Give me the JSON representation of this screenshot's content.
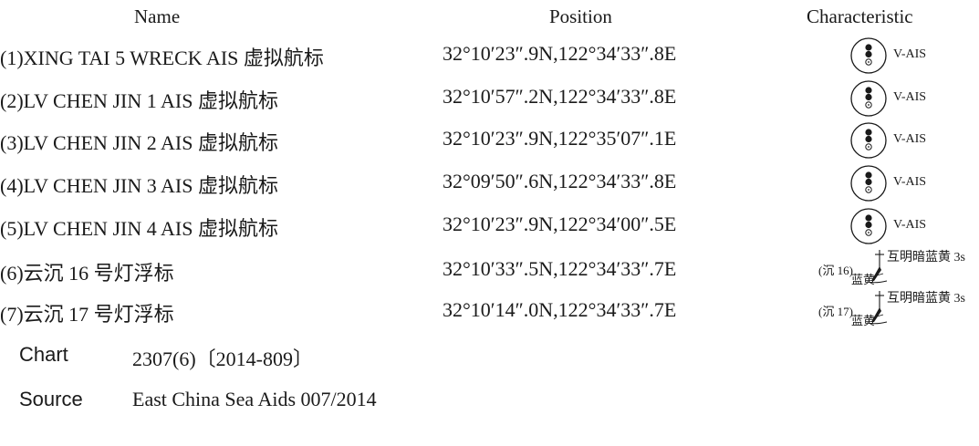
{
  "headers": {
    "name": "Name",
    "position": "Position",
    "characteristic": "Characteristic"
  },
  "ais_rows": [
    {
      "name": "(1)XING TAI 5 WRECK AIS 虚拟航标",
      "position": "32°10′23″.9N,122°34′33″.8E",
      "label": "V-AIS"
    },
    {
      "name": "(2)LV CHEN JIN 1 AIS 虚拟航标",
      "position": "32°10′57″.2N,122°34′33″.8E",
      "label": "V-AIS"
    },
    {
      "name": "(3)LV CHEN JIN 2 AIS 虚拟航标",
      "position": "32°10′23″.9N,122°35′07″.1E",
      "label": "V-AIS"
    },
    {
      "name": "(4)LV CHEN JIN 3 AIS 虚拟航标",
      "position": "32°09′50″.6N,122°34′33″.8E",
      "label": "V-AIS"
    },
    {
      "name": "(5)LV CHEN JIN 4 AIS 虚拟航标",
      "position": "32°10′23″.9N,122°34′00″.5E",
      "label": "V-AIS"
    }
  ],
  "buoy_rows": [
    {
      "name": "(6)云沉 16 号灯浮标",
      "position": "32°10′33″.5N,122°34′33″.7E",
      "ref": "(沉 16)",
      "desc": "互明暗蓝黄 3s",
      "colors": "蓝黄"
    },
    {
      "name": "(7)云沉 17 号灯浮标",
      "position": "32°10′14″.0N,122°34′33″.7E",
      "ref": "(沉 17)",
      "desc": "互明暗蓝黄 3s",
      "colors": "蓝黄"
    }
  ],
  "footer": {
    "chart_label": "Chart",
    "chart_value": "2307(6)〔2014-809〕",
    "source_label": "Source",
    "source_value": "East China Sea Aids 007/2014"
  }
}
